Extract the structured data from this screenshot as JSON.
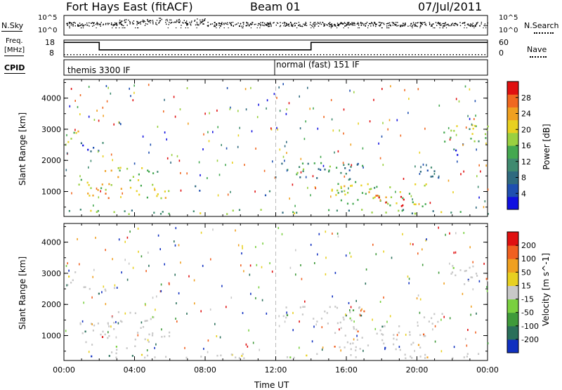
{
  "header": {
    "station": "Fort Hays East (fitACF)",
    "beam": "Beam 01",
    "date": "07/Jul/2011"
  },
  "noise_panel": {
    "left_label": "N.Sky",
    "right_label": "N.Search",
    "left_ticks": [
      "10^5",
      "10^0"
    ],
    "right_ticks": [
      "10^5",
      "10^0"
    ]
  },
  "freq_panel": {
    "left_label_line1": "Freq.",
    "left_label_line2": "[MHz]",
    "right_label": "Nave",
    "left_ticks": [
      "18",
      "8"
    ],
    "right_ticks": [
      "60",
      "0"
    ],
    "freq_steps_mhz": [
      [
        0,
        16.6
      ],
      [
        2.0,
        12.2
      ],
      [
        14.0,
        16.6
      ],
      [
        24.0,
        16.6
      ]
    ],
    "nave_steps": [
      [
        0,
        8
      ],
      [
        2.0,
        8
      ],
      [
        14.0,
        8
      ],
      [
        24.0,
        8
      ]
    ]
  },
  "cpid_panel": {
    "label": "CPID",
    "mode1": "themis 3300 IF",
    "mode2": "normal (fast) 151 IF"
  },
  "chart_data": [
    {
      "type": "heatmap",
      "title": "",
      "xlabel": "Time UT",
      "ylabel": "Slant Range [km]",
      "xlim": [
        0,
        24
      ],
      "ylim": [
        200,
        4600
      ],
      "x_ticks": [
        "00:00",
        "04:00",
        "08:00",
        "12:00",
        "16:00",
        "20:00",
        "00:00"
      ],
      "y_ticks": [
        "1000",
        "2000",
        "3000",
        "4000"
      ],
      "colorbar_label": "Power [dB]",
      "colorbar_ticks": [
        "28",
        "24",
        "20",
        "16",
        "12",
        "8",
        "4"
      ],
      "colors": [
        "#1010e0",
        "#1f4fb0",
        "#2f6a7f",
        "#3f8a6f",
        "#44a850",
        "#9ad040",
        "#e8d020",
        "#f0a020",
        "#f06820",
        "#e01010"
      ],
      "echo_regions": [
        {
          "t0": 0.0,
          "t1": 0.8,
          "r0": 2550,
          "r1": 3100,
          "level": 0.55
        },
        {
          "t0": 0.9,
          "t1": 3.0,
          "r0": 2300,
          "r1": 2600,
          "level": 0.2
        },
        {
          "t0": 0.8,
          "t1": 4.5,
          "r0": 1100,
          "r1": 1450,
          "level": 0.6
        },
        {
          "t0": 1.0,
          "t1": 2.6,
          "r0": 700,
          "r1": 1100,
          "level": 0.7
        },
        {
          "t0": 2.2,
          "t1": 5.2,
          "r0": 1450,
          "r1": 1800,
          "level": 0.65
        },
        {
          "t0": 4.0,
          "t1": 6.0,
          "r0": 800,
          "r1": 1300,
          "level": 0.6
        },
        {
          "t0": 4.6,
          "t1": 5.8,
          "r0": 1600,
          "r1": 1800,
          "level": 0.5
        },
        {
          "t0": 7.4,
          "t1": 8.0,
          "r0": 1050,
          "r1": 1300,
          "level": 0.2
        },
        {
          "t0": 11.0,
          "t1": 11.8,
          "r0": 850,
          "r1": 1050,
          "level": 0.2
        },
        {
          "t0": 12.2,
          "t1": 17.0,
          "r0": 1400,
          "r1": 2000,
          "level": 0.35
        },
        {
          "t0": 15.0,
          "t1": 20.5,
          "r0": 550,
          "r1": 1350,
          "level": 0.55
        },
        {
          "t0": 17.5,
          "t1": 19.5,
          "r0": 550,
          "r1": 950,
          "level": 0.85
        },
        {
          "t0": 20.0,
          "t1": 21.5,
          "r0": 1400,
          "r1": 1800,
          "level": 0.3
        },
        {
          "t0": 21.5,
          "t1": 24.0,
          "r0": 2600,
          "r1": 3300,
          "level": 0.5
        },
        {
          "t0": 21.8,
          "t1": 22.6,
          "r0": 2200,
          "r1": 2600,
          "level": 0.2
        },
        {
          "t0": 0.0,
          "t1": 24.0,
          "r0": 300,
          "r1": 450,
          "level": 0.45
        }
      ]
    },
    {
      "type": "heatmap",
      "title": "",
      "xlabel": "Time UT",
      "ylabel": "Slant Range [km]",
      "xlim": [
        0,
        24
      ],
      "ylim": [
        200,
        4600
      ],
      "x_ticks": [
        "00:00",
        "04:00",
        "08:00",
        "12:00",
        "16:00",
        "20:00",
        "00:00"
      ],
      "y_ticks": [
        "1000",
        "2000",
        "3000",
        "4000"
      ],
      "colorbar_label": "Velocity [m s^-1]",
      "colorbar_ticks": [
        "200",
        "100",
        "50",
        "15",
        "-15",
        "-50",
        "-100",
        "-200"
      ],
      "colors": [
        "#1030c0",
        "#2a6f5a",
        "#3f9a3a",
        "#7ad040",
        "#c8c8c8",
        "#e8d020",
        "#f0a020",
        "#f06020",
        "#e01010"
      ],
      "echo_regions": [
        {
          "t0": 0.0,
          "t1": 0.8,
          "r0": 2550,
          "r1": 3100,
          "level": 0.5
        },
        {
          "t0": 0.9,
          "t1": 3.0,
          "r0": 2300,
          "r1": 2600,
          "level": 0.5
        },
        {
          "t0": 0.8,
          "t1": 4.5,
          "r0": 1100,
          "r1": 1450,
          "level": 0.5
        },
        {
          "t0": 1.0,
          "t1": 2.6,
          "r0": 700,
          "r1": 1100,
          "level": 0.5
        },
        {
          "t0": 2.2,
          "t1": 5.2,
          "r0": 1450,
          "r1": 1800,
          "level": 0.62
        },
        {
          "t0": 4.0,
          "t1": 6.0,
          "r0": 800,
          "r1": 1300,
          "level": 0.5
        },
        {
          "t0": 2.5,
          "t1": 4.2,
          "r0": 450,
          "r1": 750,
          "level": 0.72
        },
        {
          "t0": 12.2,
          "t1": 17.0,
          "r0": 1400,
          "r1": 2000,
          "level": 0.5
        },
        {
          "t0": 15.0,
          "t1": 20.5,
          "r0": 550,
          "r1": 1350,
          "level": 0.5
        },
        {
          "t0": 20.0,
          "t1": 21.5,
          "r0": 1400,
          "r1": 1800,
          "level": 0.5
        },
        {
          "t0": 21.5,
          "t1": 24.0,
          "r0": 2600,
          "r1": 3300,
          "level": 0.5
        },
        {
          "t0": 0.0,
          "t1": 24.0,
          "r0": 300,
          "r1": 450,
          "level": 0.6
        }
      ]
    }
  ]
}
